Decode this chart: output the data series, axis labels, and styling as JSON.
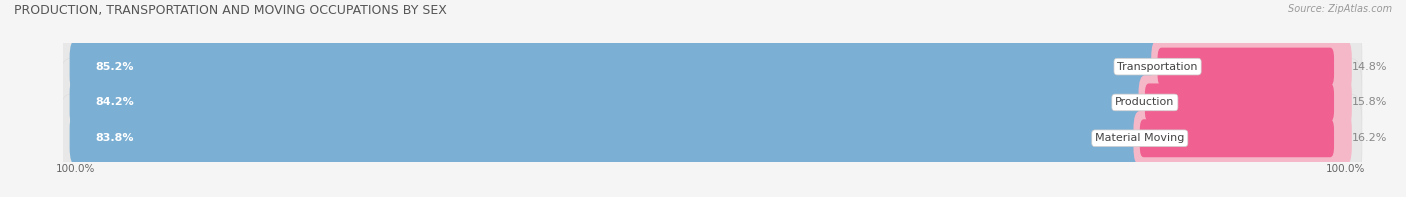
{
  "title": "PRODUCTION, TRANSPORTATION AND MOVING OCCUPATIONS BY SEX",
  "source": "Source: ZipAtlas.com",
  "categories": [
    "Transportation",
    "Production",
    "Material Moving"
  ],
  "male_pct": [
    85.2,
    84.2,
    83.8
  ],
  "female_pct": [
    14.8,
    15.8,
    16.2
  ],
  "male_color": "#7bafd4",
  "male_color_dark": "#5b9ec9",
  "female_color_light": "#f5b8c8",
  "female_color_dark": "#f06090",
  "row_bg_color": "#ebebeb",
  "row_bg_color2": "#e0e0e0",
  "fig_bg_color": "#f5f5f5",
  "title_fontsize": 9,
  "source_fontsize": 7,
  "tick_label_fontsize": 7.5,
  "legend_fontsize": 8,
  "bar_label_fontsize": 8,
  "cat_label_fontsize": 8,
  "pct_label_fontsize": 8,
  "figsize": [
    14.06,
    1.97
  ],
  "dpi": 100
}
